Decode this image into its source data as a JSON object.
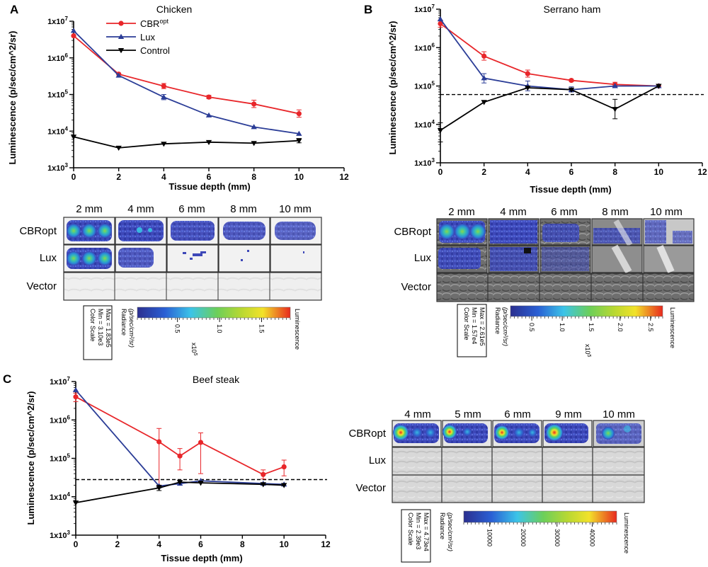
{
  "figure": {
    "panel_labels": [
      "A",
      "B",
      "C"
    ],
    "image_panels": [
      {
        "depths": [
          "2 mm",
          "4 mm",
          "6 mm",
          "8 mm",
          "10 mm"
        ],
        "rows": [
          "CBRopt",
          "Lux",
          "Vector"
        ],
        "scale": {
          "box_lines": [
            "Color Scale",
            "Min = 3.10e3",
            "Max = 1.83e5"
          ],
          "radiance_lines": [
            "Radiance",
            "(p/sec/cm²/sr)"
          ],
          "ticks": [
            "0.5",
            "1.0",
            "1.5"
          ],
          "multiplier_base": "x10",
          "multiplier_exp": "5",
          "end_label": "Luminescence"
        }
      },
      {
        "depths": [
          "2 mm",
          "4 mm",
          "6 mm",
          "8 mm",
          "10 mm"
        ],
        "rows": [
          "CBRopt",
          "Lux",
          "Vector"
        ],
        "scale": {
          "box_lines": [
            "Color Scale",
            "Min = 1.57e4",
            "Max = 2.61e5"
          ],
          "radiance_lines": [
            "Radiance",
            "(p/sec/cm²/sr)"
          ],
          "ticks": [
            "0.5",
            "1.0",
            "1.5",
            "2.0",
            "2.5"
          ],
          "multiplier_base": "x10",
          "multiplier_exp": "5",
          "end_label": "Luminescence"
        }
      },
      {
        "depths": [
          "4 mm",
          "5 mm",
          "6 mm",
          "9 mm",
          "10 mm"
        ],
        "rows": [
          "CBRopt",
          "Lux",
          "Vector"
        ],
        "scale": {
          "box_lines": [
            "Color Scale",
            "Min = 2.39e3",
            "Max = 4.73e4"
          ],
          "radiance_lines": [
            "Radiance",
            "(p/sec/cm²/sr)"
          ],
          "ticks": [
            "10000",
            "20000",
            "30000",
            "40000"
          ],
          "multiplier_base": "",
          "multiplier_exp": "",
          "end_label": "Luminescence"
        }
      }
    ]
  },
  "chart_data": [
    {
      "panel": "A",
      "type": "line",
      "title": "Chicken",
      "xlabel": "Tissue depth (mm)",
      "ylabel": "Luminescence (p/sec/cm^2/sr)",
      "xlim": [
        0,
        12
      ],
      "xticks": [
        "0",
        "2",
        "4",
        "6",
        "8",
        "10",
        "12"
      ],
      "ylim_log10": [
        3,
        7
      ],
      "yticks": [
        {
          "base": "1x10",
          "exp": "3"
        },
        {
          "base": "1x10",
          "exp": "4"
        },
        {
          "base": "1x10",
          "exp": "5"
        },
        {
          "base": "1x10",
          "exp": "6"
        },
        {
          "base": "1x10",
          "exp": "7"
        }
      ],
      "legend": [
        {
          "name": "CBR",
          "sup": "opt",
          "color": "#e8262a",
          "marker": "circle"
        },
        {
          "name": "Lux",
          "sup": "",
          "color": "#2b3d97",
          "marker": "triangle-up"
        },
        {
          "name": "Control",
          "sup": "",
          "color": "#000000",
          "marker": "triangle-down"
        }
      ],
      "series": [
        {
          "name": "CBRopt",
          "color": "#e8262a",
          "marker": "circle",
          "x": [
            0,
            2,
            4,
            6,
            8,
            10
          ],
          "y": [
            4000000,
            360000,
            170000,
            85000,
            55000,
            30000
          ],
          "err_hi": [
            0,
            0,
            200000,
            95000,
            70000,
            38000
          ],
          "err_lo": [
            0,
            0,
            145000,
            77000,
            44000,
            24000
          ]
        },
        {
          "name": "Lux",
          "color": "#2b3d97",
          "marker": "triangle-up",
          "x": [
            0,
            2,
            4,
            6,
            8,
            10
          ],
          "y": [
            5500000,
            330000,
            85000,
            27000,
            13000,
            8500
          ],
          "err_hi": [
            0,
            0,
            100000,
            0,
            0,
            0
          ],
          "err_lo": [
            0,
            0,
            72000,
            0,
            0,
            0
          ]
        },
        {
          "name": "Control",
          "color": "#000000",
          "marker": "triangle-down",
          "x": [
            0,
            2,
            4,
            6,
            8,
            10
          ],
          "y": [
            7000,
            3500,
            4500,
            5000,
            4700,
            5500
          ],
          "err_hi": [
            0,
            0,
            0,
            0,
            0,
            6300
          ],
          "err_lo": [
            0,
            0,
            0,
            0,
            0,
            4800
          ]
        }
      ]
    },
    {
      "panel": "B",
      "type": "line",
      "title": "Serrano ham",
      "xlabel": "Tissue depth (mm)",
      "ylabel": "Luminescence (p/sec/cm^2/sr)",
      "xlim": [
        0,
        12
      ],
      "xticks": [
        "0",
        "2",
        "4",
        "6",
        "8",
        "10",
        "12"
      ],
      "ylim_log10": [
        3,
        7
      ],
      "yticks": [
        {
          "base": "1x10",
          "exp": "3"
        },
        {
          "base": "1x10",
          "exp": "4"
        },
        {
          "base": "1x10",
          "exp": "5"
        },
        {
          "base": "1x10",
          "exp": "6"
        },
        {
          "base": "1x10",
          "exp": "7"
        }
      ],
      "threshold": 60000,
      "series": [
        {
          "name": "CBRopt",
          "color": "#e8262a",
          "marker": "circle",
          "x": [
            0,
            2,
            4,
            6,
            8,
            10
          ],
          "y": [
            4200000,
            600000,
            210000,
            140000,
            110000,
            100000
          ],
          "err_hi": [
            5200000,
            780000,
            260000,
            150000,
            125000,
            0
          ],
          "err_lo": [
            3400000,
            470000,
            170000,
            130000,
            95000,
            0
          ]
        },
        {
          "name": "Lux",
          "color": "#2b3d97",
          "marker": "triangle-up",
          "x": [
            0,
            2,
            4,
            6,
            8,
            10
          ],
          "y": [
            5500000,
            160000,
            100000,
            80000,
            100000,
            100000
          ],
          "err_hi": [
            0,
            210000,
            135000,
            95000,
            0,
            0
          ],
          "err_lo": [
            0,
            120000,
            75000,
            70000,
            0,
            0
          ]
        },
        {
          "name": "Control",
          "color": "#000000",
          "marker": "triangle-down",
          "x": [
            0,
            2,
            4,
            6,
            8,
            10
          ],
          "y": [
            7000,
            38000,
            90000,
            80000,
            25000,
            100000
          ],
          "err_hi": [
            11000,
            0,
            0,
            0,
            45000,
            0
          ],
          "err_lo": [
            3500,
            0,
            0,
            0,
            14000,
            0
          ]
        }
      ]
    },
    {
      "panel": "C",
      "type": "line",
      "title": "Beef steak",
      "xlabel": "Tissue depth (mm)",
      "ylabel": "Luminescence (p/sec/cm^2/sr)",
      "xlim": [
        0,
        12
      ],
      "xticks": [
        "0",
        "2",
        "4",
        "6",
        "8",
        "10",
        "12"
      ],
      "ylim_log10": [
        3,
        7
      ],
      "yticks": [
        {
          "base": "1x10",
          "exp": "3"
        },
        {
          "base": "1x10",
          "exp": "4"
        },
        {
          "base": "1x10",
          "exp": "5"
        },
        {
          "base": "1x10",
          "exp": "6"
        },
        {
          "base": "1x10",
          "exp": "7"
        }
      ],
      "threshold": 28000,
      "series": [
        {
          "name": "CBRopt",
          "color": "#e8262a",
          "marker": "circle",
          "x": [
            0,
            4,
            5,
            6,
            9,
            10
          ],
          "y": [
            4000000,
            270000,
            115000,
            260000,
            38000,
            60000
          ],
          "err_hi": [
            5000000,
            600000,
            180000,
            460000,
            50000,
            90000
          ],
          "err_lo": [
            3000000,
            20000,
            50000,
            40000,
            29000,
            35000
          ]
        },
        {
          "name": "Lux",
          "color": "#2b3d97",
          "marker": "triangle-up",
          "x": [
            0,
            4,
            5,
            6,
            9,
            10
          ],
          "y": [
            6000000,
            19000,
            22000,
            26000,
            22000,
            21000
          ],
          "err_hi": [
            0,
            0,
            0,
            0,
            0,
            0
          ],
          "err_lo": [
            0,
            0,
            0,
            0,
            0,
            0
          ]
        },
        {
          "name": "Control",
          "color": "#000000",
          "marker": "triangle-down",
          "x": [
            0,
            4,
            5,
            6,
            9,
            10
          ],
          "y": [
            7000,
            17000,
            24000,
            23000,
            21000,
            20000
          ],
          "err_hi": [
            0,
            20000,
            0,
            0,
            0,
            0
          ],
          "err_lo": [
            0,
            14500,
            0,
            0,
            0,
            0
          ]
        }
      ]
    }
  ]
}
